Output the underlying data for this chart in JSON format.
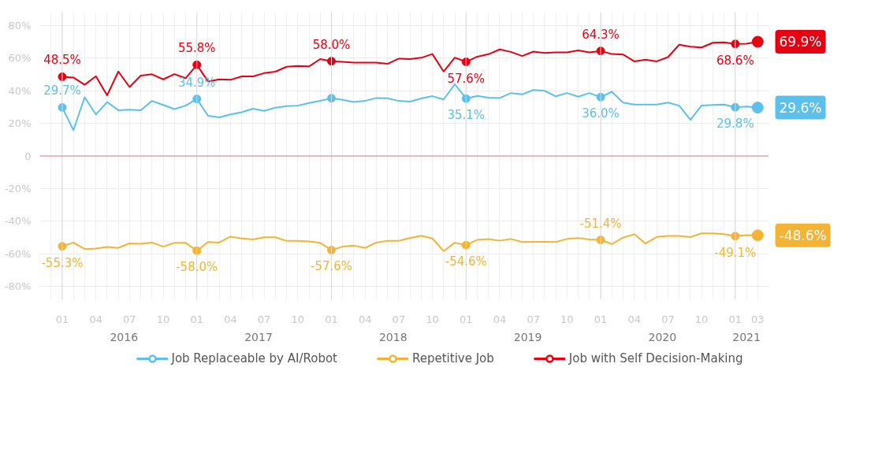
{
  "chart_data": {
    "type": "line",
    "x": [
      "2016-01",
      "2016-02",
      "2016-03",
      "2016-04",
      "2016-05",
      "2016-06",
      "2016-07",
      "2016-08",
      "2016-09",
      "2016-10",
      "2016-11",
      "2016-12",
      "2017-01",
      "2017-02",
      "2017-03",
      "2017-04",
      "2017-05",
      "2017-06",
      "2017-07",
      "2017-08",
      "2017-09",
      "2017-10",
      "2017-11",
      "2017-12",
      "2018-01",
      "2018-02",
      "2018-03",
      "2018-04",
      "2018-05",
      "2018-06",
      "2018-07",
      "2018-08",
      "2018-09",
      "2018-10",
      "2018-11",
      "2018-12",
      "2019-01",
      "2019-02",
      "2019-03",
      "2019-04",
      "2019-05",
      "2019-06",
      "2019-07",
      "2019-08",
      "2019-09",
      "2019-10",
      "2019-11",
      "2019-12",
      "2020-01",
      "2020-02",
      "2020-03",
      "2020-04",
      "2020-05",
      "2020-06",
      "2020-07",
      "2020-08",
      "2020-09",
      "2020-10",
      "2020-11",
      "2020-12",
      "2021-01",
      "2021-02",
      "2021-03"
    ],
    "series": [
      {
        "name": "Job Replaceable by AI/Robot",
        "color": "#5bc0eb",
        "values": [
          29.7,
          15.8,
          35.9,
          25.4,
          33.0,
          28.0,
          28.3,
          28.0,
          33.7,
          31.2,
          28.7,
          30.8,
          34.9,
          24.6,
          23.6,
          25.4,
          26.8,
          28.9,
          27.6,
          29.5,
          30.5,
          30.8,
          32.4,
          33.8,
          35.3,
          34.4,
          33.0,
          33.7,
          35.5,
          35.3,
          33.7,
          33.3,
          35.2,
          36.6,
          34.6,
          44.0,
          35.1,
          36.8,
          35.7,
          35.5,
          38.5,
          37.7,
          40.4,
          39.9,
          36.5,
          38.5,
          36.3,
          38.5,
          36.0,
          39.3,
          32.7,
          31.5,
          31.5,
          31.5,
          32.7,
          30.8,
          22.1,
          30.9,
          31.2,
          31.5,
          29.8,
          30.3,
          29.6
        ],
        "value_labels": [
          "29.7%",
          null,
          null,
          null,
          null,
          null,
          null,
          null,
          null,
          null,
          null,
          null,
          "34.9%",
          null,
          null,
          null,
          null,
          null,
          null,
          null,
          null,
          null,
          null,
          null,
          null,
          null,
          null,
          null,
          null,
          null,
          null,
          null,
          null,
          null,
          null,
          null,
          "35.1%",
          null,
          null,
          null,
          null,
          null,
          null,
          null,
          null,
          null,
          null,
          null,
          "36.0%",
          null,
          null,
          null,
          null,
          null,
          null,
          null,
          null,
          null,
          null,
          null,
          "29.8%",
          null,
          "29.6%"
        ]
      },
      {
        "name": "Repetitive Job",
        "color": "#f5b335",
        "values": [
          -55.3,
          -53.0,
          -57.0,
          -56.7,
          -55.7,
          -56.3,
          -53.5,
          -53.8,
          -53.0,
          -55.5,
          -53.2,
          -53.2,
          -58.0,
          -52.7,
          -53.0,
          -49.4,
          -50.5,
          -51.1,
          -49.8,
          -49.8,
          -52.0,
          -52.0,
          -52.3,
          -53.2,
          -57.6,
          -55.5,
          -54.9,
          -56.3,
          -53.0,
          -51.9,
          -51.9,
          -50.3,
          -48.8,
          -50.5,
          -58.2,
          -53.1,
          -54.6,
          -51.3,
          -50.9,
          -51.9,
          -50.8,
          -52.7,
          -52.5,
          -52.5,
          -52.7,
          -50.8,
          -50.3,
          -51.1,
          -51.4,
          -53.9,
          -50.0,
          -47.9,
          -53.6,
          -49.6,
          -49.0,
          -49.0,
          -49.7,
          -47.4,
          -47.4,
          -47.9,
          -49.1,
          -48.5,
          -48.6
        ],
        "value_labels": [
          "-55.3%",
          null,
          null,
          null,
          null,
          null,
          null,
          null,
          null,
          null,
          null,
          null,
          "-58.0%",
          null,
          null,
          null,
          null,
          null,
          null,
          null,
          null,
          null,
          null,
          null,
          "-57.6%",
          null,
          null,
          null,
          null,
          null,
          null,
          null,
          null,
          null,
          null,
          null,
          "-54.6%",
          null,
          null,
          null,
          null,
          null,
          null,
          null,
          null,
          null,
          null,
          null,
          "-51.4%",
          null,
          null,
          null,
          null,
          null,
          null,
          null,
          null,
          null,
          null,
          null,
          "-49.1%",
          null,
          "-48.6%"
        ]
      },
      {
        "name": "Job with Self Decision-Making",
        "color": "#e60012",
        "values": [
          48.5,
          48.0,
          43.6,
          48.8,
          37.1,
          51.7,
          42.2,
          49.2,
          50.0,
          46.9,
          50.1,
          47.6,
          55.8,
          45.6,
          46.9,
          46.6,
          48.7,
          48.7,
          50.7,
          51.6,
          54.6,
          55.1,
          54.8,
          59.3,
          58.0,
          57.6,
          57.1,
          57.1,
          57.1,
          56.4,
          59.6,
          59.3,
          60.1,
          62.4,
          51.7,
          60.2,
          57.6,
          60.8,
          62.3,
          65.2,
          63.7,
          61.2,
          63.9,
          63.0,
          63.4,
          63.4,
          64.6,
          63.4,
          64.3,
          62.4,
          62.1,
          57.9,
          59.0,
          57.9,
          60.5,
          68.1,
          66.9,
          66.4,
          69.3,
          69.6,
          68.6,
          68.7,
          69.9
        ],
        "value_labels": [
          "48.5%",
          null,
          null,
          null,
          null,
          null,
          null,
          null,
          null,
          null,
          null,
          null,
          "55.8%",
          null,
          null,
          null,
          null,
          null,
          null,
          null,
          null,
          null,
          null,
          null,
          "58.0%",
          null,
          null,
          null,
          null,
          null,
          null,
          null,
          null,
          null,
          null,
          null,
          "57.6%",
          null,
          null,
          null,
          null,
          null,
          null,
          null,
          null,
          null,
          null,
          null,
          "64.3%",
          null,
          null,
          null,
          null,
          null,
          null,
          null,
          null,
          null,
          null,
          null,
          "68.6%",
          null,
          "69.9%"
        ]
      }
    ],
    "xlim": [
      "2015-11",
      "2021-04"
    ],
    "xticks": [
      {
        "value": "2016-01",
        "label": "01"
      },
      {
        "value": "2016-04",
        "label": "04"
      },
      {
        "value": "2016-07",
        "label": "07"
      },
      {
        "value": "2016-10",
        "label": "10"
      },
      {
        "value": "2017-01",
        "label": "01"
      },
      {
        "value": "2017-04",
        "label": "04"
      },
      {
        "value": "2017-07",
        "label": "07"
      },
      {
        "value": "2017-10",
        "label": "10"
      },
      {
        "value": "2018-01",
        "label": "01"
      },
      {
        "value": "2018-04",
        "label": "04"
      },
      {
        "value": "2018-07",
        "label": "07"
      },
      {
        "value": "2018-10",
        "label": "10"
      },
      {
        "value": "2019-01",
        "label": "01"
      },
      {
        "value": "2019-04",
        "label": "04"
      },
      {
        "value": "2019-07",
        "label": "07"
      },
      {
        "value": "2019-10",
        "label": "10"
      },
      {
        "value": "2020-01",
        "label": "01"
      },
      {
        "value": "2020-04",
        "label": "04"
      },
      {
        "value": "2020-07",
        "label": "07"
      },
      {
        "value": "2020-10",
        "label": "10"
      },
      {
        "value": "2021-01",
        "label": "01"
      },
      {
        "value": "2021-03",
        "label": "03"
      }
    ],
    "ylim": [
      -88,
      88
    ],
    "yticks": [
      {
        "value": -80,
        "label": "-80%"
      },
      {
        "value": -60,
        "label": "-60%"
      },
      {
        "value": -40,
        "label": "-40%"
      },
      {
        "value": -20,
        "label": "-20%"
      },
      {
        "value": 0,
        "label": "0"
      },
      {
        "value": 20,
        "label": "20%"
      },
      {
        "value": 40,
        "label": "40%"
      },
      {
        "value": 60,
        "label": "60%"
      },
      {
        "value": 80,
        "label": "80%"
      }
    ],
    "annotations": [
      "2016",
      "2017",
      "2018",
      "2019",
      "2020",
      "2021"
    ],
    "ref_lines": [
      {
        "axis": "y",
        "value": 0,
        "label": null,
        "color": "#e8a3b3"
      }
    ],
    "grid": true,
    "legend": "bottom",
    "line_style": "solid"
  }
}
